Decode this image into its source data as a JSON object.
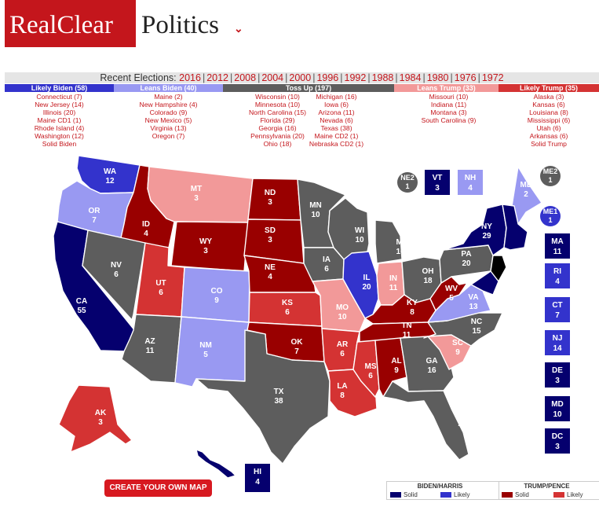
{
  "header": {
    "logo_part1": "RealClear",
    "logo_part2": "Politics",
    "chevron": "⌄"
  },
  "recent": {
    "label": "Recent Elections:",
    "years": [
      "2016",
      "2012",
      "2008",
      "2004",
      "2000",
      "1996",
      "1992",
      "1988",
      "1984",
      "1980",
      "1976",
      "1972"
    ]
  },
  "colors": {
    "solid_biden": "#05006e",
    "likely_biden": "#3333cc",
    "leans_biden": "#9999f2",
    "tossup": "#5d5d5d",
    "leans_trump": "#f29999",
    "likely_trump": "#d43333",
    "solid_trump": "#990000"
  },
  "categories": [
    {
      "title": "Likely Biden (58)",
      "color": "#3333cc",
      "states": [
        "Connecticut (7)",
        "New Jersey (14)",
        "Illinois (20)",
        "Maine CD1 (1)",
        "Rhode Island (4)",
        "Washington (12)",
        "Solid Biden"
      ]
    },
    {
      "title": "Leans Biden (40)",
      "color": "#9999f2",
      "states": [
        "Maine (2)",
        "New Hampshire (4)",
        "Colorado (9)",
        "New Mexico (5)",
        "Virginia (13)",
        "Oregon (7)"
      ]
    },
    {
      "title": "Toss Up (197)",
      "color": "#5d5d5d",
      "states": [
        "Wisconsin (10)",
        "Minnesota (10)",
        "North Carolina (15)",
        "Florida (29)",
        "Georgia (16)",
        "Pennsylvania (20)",
        "Ohio (18)"
      ]
    },
    {
      "title": "",
      "color": "#5d5d5d",
      "states": [
        "Michigan (16)",
        "Iowa (6)",
        "Arizona (11)",
        "Nevada (6)",
        "Texas (38)",
        "Maine CD2 (1)",
        "Nebraska CD2 (1)"
      ]
    },
    {
      "title": "Leans Trump (33)",
      "color": "#f29999",
      "states": [
        "Missouri (10)",
        "Indiana (11)",
        "Montana (3)",
        "South Carolina (9)"
      ]
    },
    {
      "title": "Likely Trump (35)",
      "color": "#d43333",
      "states": [
        "Alaska (3)",
        "Kansas (6)",
        "Louisiana (8)",
        "Mississippi (6)",
        "Utah (6)",
        "Arkansas (6)",
        "Solid Trump"
      ]
    }
  ],
  "states": {
    "WA": {
      "abbr": "WA",
      "ev": "12",
      "cat": "likely_biden"
    },
    "OR": {
      "abbr": "OR",
      "ev": "7",
      "cat": "leans_biden"
    },
    "CA": {
      "abbr": "CA",
      "ev": "55",
      "cat": "solid_biden"
    },
    "ID": {
      "abbr": "ID",
      "ev": "4",
      "cat": "solid_trump"
    },
    "NV": {
      "abbr": "NV",
      "ev": "6",
      "cat": "tossup"
    },
    "MT": {
      "abbr": "MT",
      "ev": "3",
      "cat": "leans_trump"
    },
    "WY": {
      "abbr": "WY",
      "ev": "3",
      "cat": "solid_trump"
    },
    "UT": {
      "abbr": "UT",
      "ev": "6",
      "cat": "likely_trump"
    },
    "AZ": {
      "abbr": "AZ",
      "ev": "11",
      "cat": "tossup"
    },
    "CO": {
      "abbr": "CO",
      "ev": "9",
      "cat": "leans_biden"
    },
    "NM": {
      "abbr": "NM",
      "ev": "5",
      "cat": "leans_biden"
    },
    "ND": {
      "abbr": "ND",
      "ev": "3",
      "cat": "solid_trump"
    },
    "SD": {
      "abbr": "SD",
      "ev": "3",
      "cat": "solid_trump"
    },
    "NE": {
      "abbr": "NE",
      "ev": "4",
      "cat": "solid_trump"
    },
    "KS": {
      "abbr": "KS",
      "ev": "6",
      "cat": "likely_trump"
    },
    "OK": {
      "abbr": "OK",
      "ev": "7",
      "cat": "solid_trump"
    },
    "TX": {
      "abbr": "TX",
      "ev": "38",
      "cat": "tossup"
    },
    "MN": {
      "abbr": "MN",
      "ev": "10",
      "cat": "tossup"
    },
    "IA": {
      "abbr": "IA",
      "ev": "6",
      "cat": "tossup"
    },
    "MO": {
      "abbr": "MO",
      "ev": "10",
      "cat": "leans_trump"
    },
    "AR": {
      "abbr": "AR",
      "ev": "6",
      "cat": "likely_trump"
    },
    "LA": {
      "abbr": "LA",
      "ev": "8",
      "cat": "likely_trump"
    },
    "WI": {
      "abbr": "WI",
      "ev": "10",
      "cat": "tossup"
    },
    "IL": {
      "abbr": "IL",
      "ev": "20",
      "cat": "likely_biden"
    },
    "MI": {
      "abbr": "MI",
      "ev": "16",
      "cat": "tossup"
    },
    "IN": {
      "abbr": "IN",
      "ev": "11",
      "cat": "leans_trump"
    },
    "OH": {
      "abbr": "OH",
      "ev": "18",
      "cat": "tossup"
    },
    "KY": {
      "abbr": "KY",
      "ev": "8",
      "cat": "solid_trump"
    },
    "TN": {
      "abbr": "TN",
      "ev": "11",
      "cat": "solid_trump"
    },
    "MS": {
      "abbr": "MS",
      "ev": "6",
      "cat": "likely_trump"
    },
    "AL": {
      "abbr": "AL",
      "ev": "9",
      "cat": "solid_trump"
    },
    "GA": {
      "abbr": "GA",
      "ev": "16",
      "cat": "tossup"
    },
    "FL": {
      "abbr": "FL",
      "ev": "29",
      "cat": "tossup"
    },
    "SC": {
      "abbr": "SC",
      "ev": "9",
      "cat": "leans_trump"
    },
    "NC": {
      "abbr": "NC",
      "ev": "15",
      "cat": "tossup"
    },
    "VA": {
      "abbr": "VA",
      "ev": "13",
      "cat": "leans_biden"
    },
    "WV": {
      "abbr": "WV",
      "ev": "5",
      "cat": "solid_trump"
    },
    "PA": {
      "abbr": "PA",
      "ev": "20",
      "cat": "tossup"
    },
    "NY": {
      "abbr": "NY",
      "ev": "29",
      "cat": "solid_biden"
    },
    "ME": {
      "abbr": "ME",
      "ev": "2",
      "cat": "leans_biden"
    },
    "AK": {
      "abbr": "AK",
      "ev": "3",
      "cat": "likely_trump"
    },
    "HI": {
      "abbr": "HI",
      "ev": "4",
      "cat": "solid_biden"
    }
  },
  "side_boxes": {
    "NE2": {
      "abbr": "NE2",
      "ev": "1",
      "cat": "tossup"
    },
    "VT": {
      "abbr": "VT",
      "ev": "3",
      "cat": "solid_biden"
    },
    "NH": {
      "abbr": "NH",
      "ev": "4",
      "cat": "leans_biden"
    },
    "ME2": {
      "abbr": "ME2",
      "ev": "1",
      "cat": "tossup"
    },
    "ME1": {
      "abbr": "ME1",
      "ev": "1",
      "cat": "likely_biden"
    },
    "MA": {
      "abbr": "MA",
      "ev": "11",
      "cat": "solid_biden"
    },
    "RI": {
      "abbr": "RI",
      "ev": "4",
      "cat": "likely_biden"
    },
    "CT": {
      "abbr": "CT",
      "ev": "7",
      "cat": "likely_biden"
    },
    "NJ": {
      "abbr": "NJ",
      "ev": "14",
      "cat": "likely_biden"
    },
    "DE": {
      "abbr": "DE",
      "ev": "3",
      "cat": "solid_biden"
    },
    "MD": {
      "abbr": "MD",
      "ev": "10",
      "cat": "solid_biden"
    },
    "DC": {
      "abbr": "DC",
      "ev": "3",
      "cat": "solid_biden"
    }
  },
  "create_button": "CREATE YOUR OWN MAP",
  "legend": {
    "biden_header": "BIDEN/HARRIS",
    "trump_header": "TRUMP/PENCE",
    "solid": "Solid",
    "likely": "Likely"
  }
}
